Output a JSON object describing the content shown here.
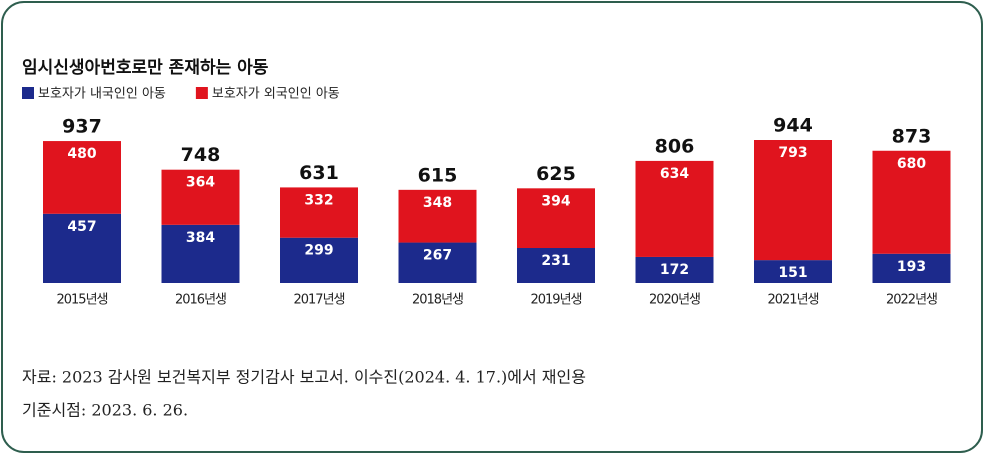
{
  "chart_data": {
    "type": "stacked_bar",
    "title": "임시신생아번호로만 존재하는 아동",
    "categories": [
      "2015년생",
      "2016년생",
      "2017년생",
      "2018년생",
      "2019년생",
      "2020년생",
      "2021년생",
      "2022년생"
    ],
    "series": [
      {
        "name": "보호자가 내국인인 아동",
        "color": "#1c2a8c",
        "values": [
          457,
          384,
          299,
          267,
          231,
          172,
          151,
          193
        ]
      },
      {
        "name": "보호자가 외국인인 아동",
        "color": "#e0141e",
        "values": [
          480,
          364,
          332,
          348,
          394,
          634,
          793,
          680
        ]
      }
    ],
    "totals": [
      937,
      748,
      631,
      615,
      625,
      806,
      944,
      873
    ]
  },
  "notes": [
    "자료: 2023 감사원 보건복지부 정기감사 보고서. 이수진(2024. 4. 17.)에서 재인용",
    "기준시점: 2023. 6. 26."
  ]
}
